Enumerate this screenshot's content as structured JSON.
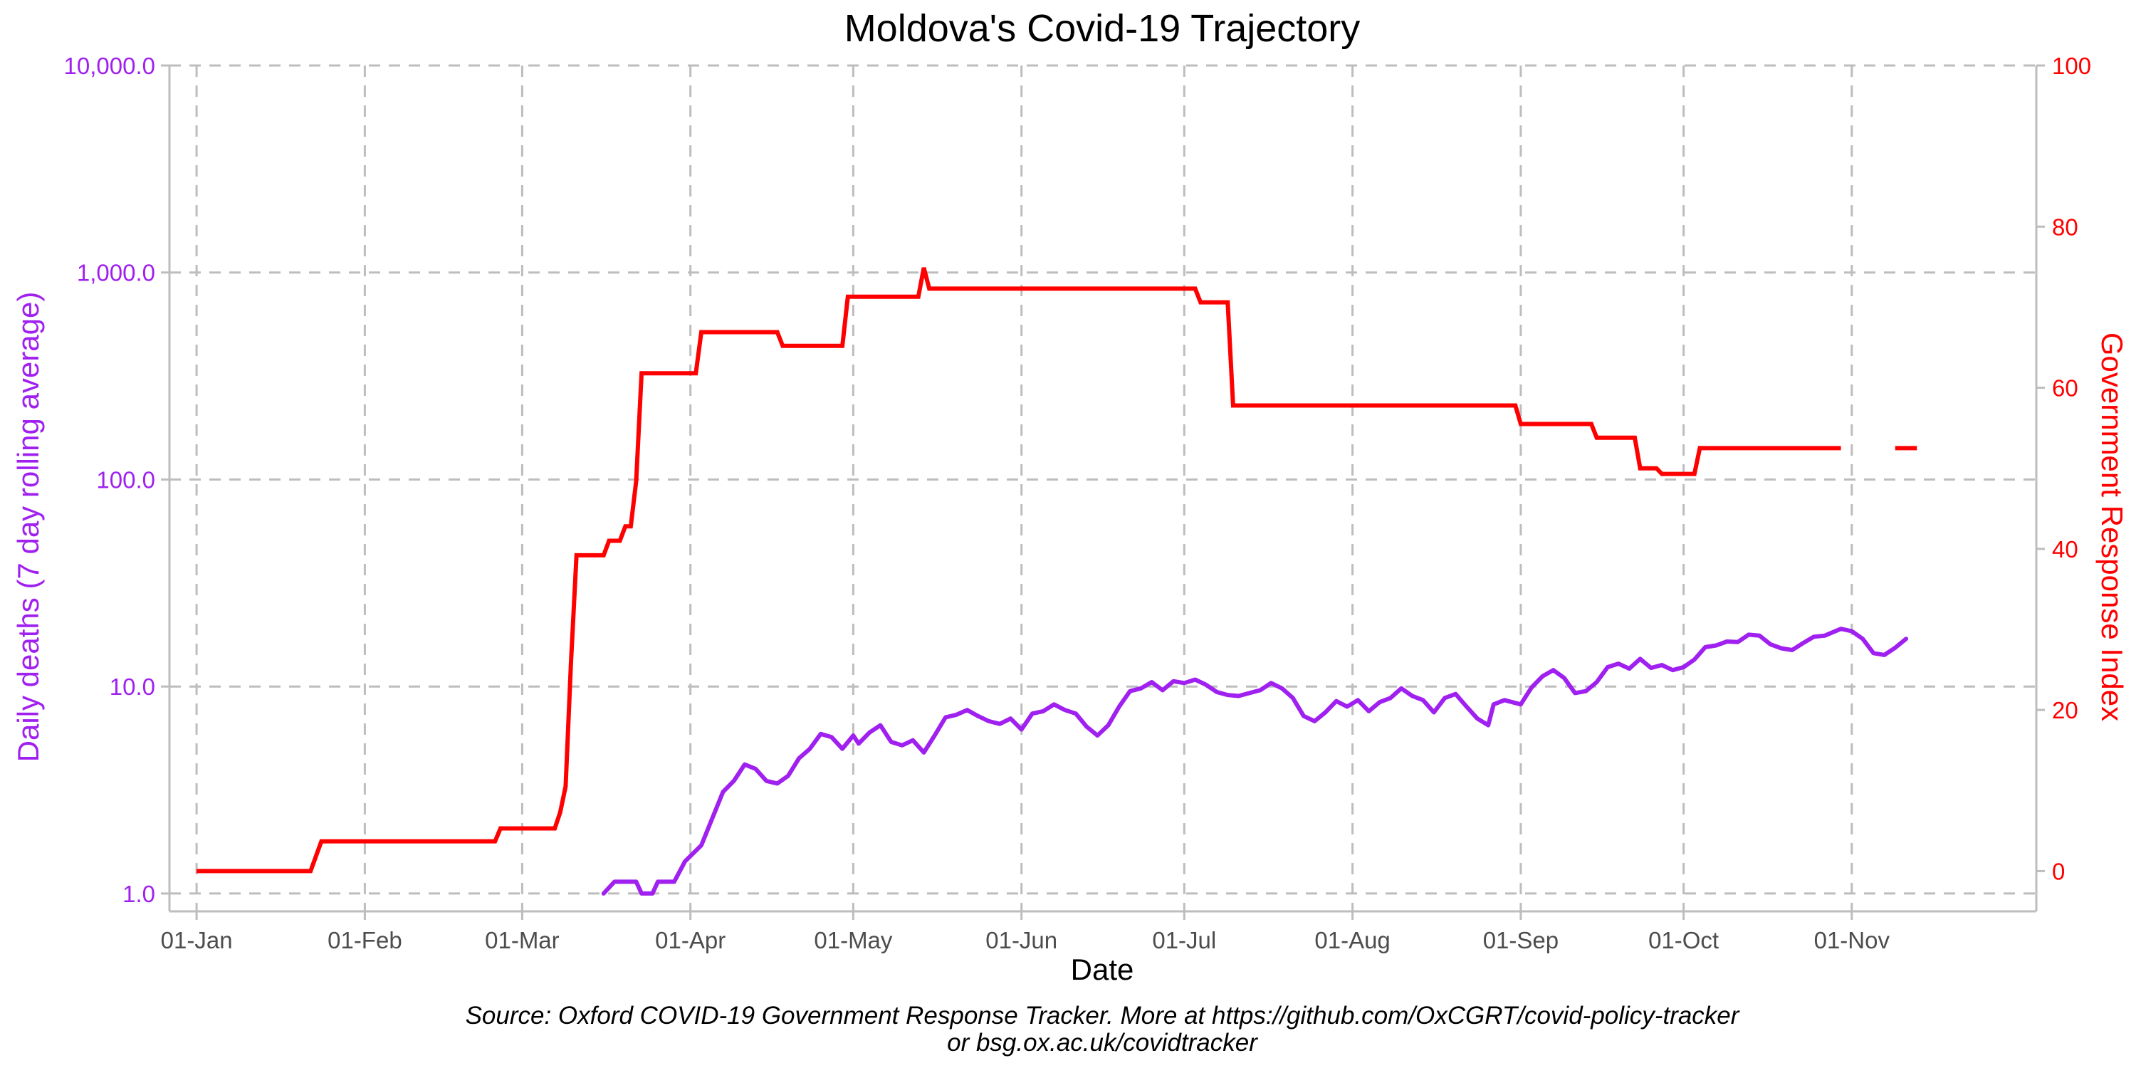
{
  "chart_data": {
    "type": "line",
    "title": "Moldova's Covid-19 Trajectory",
    "xlabel": "Date",
    "ylabel_left": "Daily deaths (7 day rolling average)",
    "ylabel_right": "Government Response Index",
    "source_line1": "Source: Oxford COVID-19 Government Response Tracker. More at https://github.com/OxCGRT/covid-policy-tracker",
    "source_line2": "or bsg.ox.ac.uk/covidtracker",
    "x_axis": {
      "type": "date",
      "range": [
        "2019-12-27",
        "2020-12-05"
      ],
      "ticks": [
        {
          "date": "2020-01-01",
          "label": "01-Jan"
        },
        {
          "date": "2020-02-01",
          "label": "01-Feb"
        },
        {
          "date": "2020-03-01",
          "label": "01-Mar"
        },
        {
          "date": "2020-04-01",
          "label": "01-Apr"
        },
        {
          "date": "2020-05-01",
          "label": "01-May"
        },
        {
          "date": "2020-06-01",
          "label": "01-Jun"
        },
        {
          "date": "2020-07-01",
          "label": "01-Jul"
        },
        {
          "date": "2020-08-01",
          "label": "01-Aug"
        },
        {
          "date": "2020-09-01",
          "label": "01-Sep"
        },
        {
          "date": "2020-10-01",
          "label": "01-Oct"
        },
        {
          "date": "2020-11-01",
          "label": "01-Nov"
        }
      ]
    },
    "y_left": {
      "scale": "log10",
      "range": [
        0.82,
        10000
      ],
      "ticks": [
        {
          "value": 1,
          "label": "1.0"
        },
        {
          "value": 10,
          "label": "10.0"
        },
        {
          "value": 100,
          "label": "100.0"
        },
        {
          "value": 1000,
          "label": "1,000.0"
        },
        {
          "value": 10000,
          "label": "10,000.0"
        }
      ]
    },
    "y_right": {
      "scale": "linear",
      "range": [
        -5,
        100
      ],
      "ticks": [
        {
          "value": 0,
          "label": "0"
        },
        {
          "value": 20,
          "label": "20"
        },
        {
          "value": 40,
          "label": "40"
        },
        {
          "value": 60,
          "label": "60"
        },
        {
          "value": 80,
          "label": "80"
        },
        {
          "value": 100,
          "label": "100"
        }
      ]
    },
    "grid": true,
    "legend": "none",
    "series": [
      {
        "name": "Daily deaths (7 day rolling average)",
        "axis": "left",
        "color": "#a020f0",
        "points": [
          [
            "2020-03-16",
            1.0
          ],
          [
            "2020-03-18",
            1.14
          ],
          [
            "2020-03-22",
            1.14
          ],
          [
            "2020-03-23",
            1.0
          ],
          [
            "2020-03-25",
            1.0
          ],
          [
            "2020-03-26",
            1.14
          ],
          [
            "2020-03-29",
            1.14
          ],
          [
            "2020-03-31",
            1.43
          ],
          [
            "2020-04-03",
            1.71
          ],
          [
            "2020-04-05",
            2.3
          ],
          [
            "2020-04-07",
            3.1
          ],
          [
            "2020-04-09",
            3.5
          ],
          [
            "2020-04-11",
            4.2
          ],
          [
            "2020-04-13",
            4.0
          ],
          [
            "2020-04-15",
            3.5
          ],
          [
            "2020-04-17",
            3.4
          ],
          [
            "2020-04-19",
            3.7
          ],
          [
            "2020-04-21",
            4.5
          ],
          [
            "2020-04-23",
            5.0
          ],
          [
            "2020-04-25",
            5.9
          ],
          [
            "2020-04-27",
            5.7
          ],
          [
            "2020-04-29",
            5.0
          ],
          [
            "2020-05-01",
            5.8
          ],
          [
            "2020-05-02",
            5.3
          ],
          [
            "2020-05-04",
            6.0
          ],
          [
            "2020-05-06",
            6.5
          ],
          [
            "2020-05-08",
            5.4
          ],
          [
            "2020-05-10",
            5.2
          ],
          [
            "2020-05-12",
            5.5
          ],
          [
            "2020-05-14",
            4.8
          ],
          [
            "2020-05-16",
            5.8
          ],
          [
            "2020-05-18",
            7.1
          ],
          [
            "2020-05-20",
            7.3
          ],
          [
            "2020-05-22",
            7.7
          ],
          [
            "2020-05-24",
            7.2
          ],
          [
            "2020-05-26",
            6.8
          ],
          [
            "2020-05-28",
            6.6
          ],
          [
            "2020-05-30",
            7.0
          ],
          [
            "2020-06-01",
            6.2
          ],
          [
            "2020-06-03",
            7.4
          ],
          [
            "2020-06-05",
            7.6
          ],
          [
            "2020-06-07",
            8.2
          ],
          [
            "2020-06-09",
            7.7
          ],
          [
            "2020-06-11",
            7.4
          ],
          [
            "2020-06-13",
            6.4
          ],
          [
            "2020-06-15",
            5.8
          ],
          [
            "2020-06-17",
            6.5
          ],
          [
            "2020-06-19",
            8.0
          ],
          [
            "2020-06-21",
            9.5
          ],
          [
            "2020-06-23",
            9.8
          ],
          [
            "2020-06-25",
            10.5
          ],
          [
            "2020-06-27",
            9.6
          ],
          [
            "2020-06-29",
            10.6
          ],
          [
            "2020-07-01",
            10.4
          ],
          [
            "2020-07-03",
            10.8
          ],
          [
            "2020-07-05",
            10.2
          ],
          [
            "2020-07-07",
            9.4
          ],
          [
            "2020-07-09",
            9.1
          ],
          [
            "2020-07-11",
            9.0
          ],
          [
            "2020-07-13",
            9.3
          ],
          [
            "2020-07-15",
            9.6
          ],
          [
            "2020-07-17",
            10.4
          ],
          [
            "2020-07-19",
            9.8
          ],
          [
            "2020-07-21",
            8.8
          ],
          [
            "2020-07-23",
            7.2
          ],
          [
            "2020-07-25",
            6.8
          ],
          [
            "2020-07-27",
            7.5
          ],
          [
            "2020-07-29",
            8.5
          ],
          [
            "2020-07-31",
            8.0
          ],
          [
            "2020-08-02",
            8.6
          ],
          [
            "2020-08-04",
            7.6
          ],
          [
            "2020-08-06",
            8.4
          ],
          [
            "2020-08-08",
            8.8
          ],
          [
            "2020-08-10",
            9.8
          ],
          [
            "2020-08-12",
            9.0
          ],
          [
            "2020-08-14",
            8.6
          ],
          [
            "2020-08-16",
            7.5
          ],
          [
            "2020-08-18",
            8.8
          ],
          [
            "2020-08-20",
            9.2
          ],
          [
            "2020-08-22",
            8.0
          ],
          [
            "2020-08-24",
            7.0
          ],
          [
            "2020-08-26",
            6.5
          ],
          [
            "2020-08-27",
            8.2
          ],
          [
            "2020-08-29",
            8.6
          ],
          [
            "2020-09-01",
            8.2
          ],
          [
            "2020-09-03",
            9.9
          ],
          [
            "2020-09-05",
            11.2
          ],
          [
            "2020-09-07",
            12.0
          ],
          [
            "2020-09-09",
            11.0
          ],
          [
            "2020-09-11",
            9.3
          ],
          [
            "2020-09-13",
            9.5
          ],
          [
            "2020-09-15",
            10.5
          ],
          [
            "2020-09-17",
            12.4
          ],
          [
            "2020-09-19",
            12.9
          ],
          [
            "2020-09-21",
            12.2
          ],
          [
            "2020-09-23",
            13.6
          ],
          [
            "2020-09-25",
            12.3
          ],
          [
            "2020-09-27",
            12.7
          ],
          [
            "2020-09-29",
            12.0
          ],
          [
            "2020-10-01",
            12.4
          ],
          [
            "2020-10-03",
            13.5
          ],
          [
            "2020-10-05",
            15.5
          ],
          [
            "2020-10-07",
            15.8
          ],
          [
            "2020-10-09",
            16.5
          ],
          [
            "2020-10-11",
            16.4
          ],
          [
            "2020-10-13",
            17.8
          ],
          [
            "2020-10-15",
            17.6
          ],
          [
            "2020-10-17",
            16.0
          ],
          [
            "2020-10-19",
            15.3
          ],
          [
            "2020-10-21",
            15.0
          ],
          [
            "2020-10-23",
            16.2
          ],
          [
            "2020-10-25",
            17.4
          ],
          [
            "2020-10-27",
            17.6
          ],
          [
            "2020-10-30",
            19.0
          ],
          [
            "2020-11-01",
            18.5
          ],
          [
            "2020-11-03",
            17.0
          ],
          [
            "2020-11-05",
            14.5
          ],
          [
            "2020-11-07",
            14.2
          ],
          [
            "2020-11-09",
            15.4
          ],
          [
            "2020-11-11",
            17.0
          ]
        ]
      },
      {
        "name": "Government Response Index",
        "axis": "right",
        "color": "#ff0000",
        "segments": [
          [
            [
              "2020-01-01",
              0
            ],
            [
              "2020-01-22",
              0
            ],
            [
              "2020-01-24",
              3.7
            ],
            [
              "2020-02-25",
              3.7
            ],
            [
              "2020-02-26",
              5.3
            ],
            [
              "2020-03-07",
              5.3
            ],
            [
              "2020-03-08",
              7.3
            ],
            [
              "2020-03-09",
              10.5
            ],
            [
              "2020-03-10",
              26
            ],
            [
              "2020-03-11",
              39.2
            ],
            [
              "2020-03-16",
              39.2
            ],
            [
              "2020-03-17",
              41.0
            ],
            [
              "2020-03-19",
              41.0
            ],
            [
              "2020-03-20",
              42.8
            ],
            [
              "2020-03-21",
              42.8
            ],
            [
              "2020-03-22",
              48.4
            ],
            [
              "2020-03-23",
              61.8
            ],
            [
              "2020-03-24",
              61.8
            ],
            [
              "2020-04-02",
              61.8
            ],
            [
              "2020-04-03",
              66.9
            ],
            [
              "2020-04-17",
              66.9
            ],
            [
              "2020-04-18",
              65.2
            ],
            [
              "2020-04-29",
              65.2
            ],
            [
              "2020-04-30",
              71.3
            ],
            [
              "2020-05-13",
              71.3
            ],
            [
              "2020-05-14",
              74.9
            ],
            [
              "2020-05-15",
              72.3
            ],
            [
              "2020-07-03",
              72.3
            ],
            [
              "2020-07-04",
              70.6
            ],
            [
              "2020-07-09",
              70.6
            ],
            [
              "2020-07-10",
              57.8
            ],
            [
              "2020-08-31",
              57.8
            ],
            [
              "2020-09-01",
              55.5
            ],
            [
              "2020-09-14",
              55.5
            ],
            [
              "2020-09-15",
              53.8
            ],
            [
              "2020-09-22",
              53.8
            ],
            [
              "2020-09-23",
              50.0
            ],
            [
              "2020-09-26",
              50.0
            ],
            [
              "2020-09-27",
              49.3
            ],
            [
              "2020-10-03",
              49.3
            ],
            [
              "2020-10-04",
              52.5
            ],
            [
              "2020-10-30",
              52.5
            ]
          ],
          [
            [
              "2020-11-09",
              52.5
            ],
            [
              "2020-11-13",
              52.5
            ]
          ]
        ]
      }
    ]
  }
}
